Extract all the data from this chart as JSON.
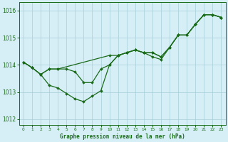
{
  "title": "Graphe pression niveau de la mer (hPa)",
  "background_color": "#d6eef5",
  "grid_color": "#a8cdd8",
  "line_color": "#1a6b1a",
  "xlim": [
    -0.5,
    23.5
  ],
  "ylim": [
    1011.8,
    1016.3
  ],
  "yticks": [
    1012,
    1013,
    1014,
    1015,
    1016
  ],
  "xticks": [
    0,
    1,
    2,
    3,
    4,
    5,
    6,
    7,
    8,
    9,
    10,
    11,
    12,
    13,
    14,
    15,
    16,
    17,
    18,
    19,
    20,
    21,
    22,
    23
  ],
  "series": [
    {
      "x": [
        0,
        1,
        2,
        3,
        4,
        10,
        11,
        12,
        13,
        14,
        15,
        16,
        17,
        18,
        19,
        20,
        21,
        22,
        23
      ],
      "y": [
        1014.1,
        1013.9,
        1013.65,
        1013.85,
        1013.85,
        1014.35,
        1014.35,
        1014.45,
        1014.55,
        1014.45,
        1014.45,
        1014.3,
        1014.65,
        1015.1,
        1015.1,
        1015.5,
        1015.85,
        1015.85,
        1015.75
      ]
    },
    {
      "x": [
        0,
        1,
        2,
        3,
        4,
        5,
        6,
        7,
        8,
        9,
        10,
        11,
        12,
        13,
        14,
        15,
        16,
        17,
        18,
        19,
        20,
        21,
        22,
        23
      ],
      "y": [
        1014.1,
        1013.9,
        1013.65,
        1013.25,
        1013.15,
        1012.95,
        1012.75,
        1012.65,
        1012.85,
        1013.05,
        1014.0,
        1014.35,
        1014.45,
        1014.55,
        1014.45,
        1014.45,
        1014.3,
        1014.65,
        1015.1,
        1015.1,
        1015.5,
        1015.85,
        1015.85,
        1015.75
      ]
    },
    {
      "x": [
        0,
        1,
        2,
        3,
        4,
        5,
        6,
        7,
        8,
        9,
        10,
        11,
        12,
        13,
        14,
        15,
        16,
        17,
        18,
        19,
        20,
        21,
        22,
        23
      ],
      "y": [
        1014.1,
        1013.9,
        1013.65,
        1013.85,
        1013.85,
        1013.85,
        1013.75,
        1013.35,
        1013.35,
        1013.85,
        1014.0,
        1014.35,
        1014.45,
        1014.55,
        1014.45,
        1014.3,
        1014.2,
        1014.65,
        1015.1,
        1015.1,
        1015.5,
        1015.85,
        1015.85,
        1015.75
      ]
    }
  ]
}
